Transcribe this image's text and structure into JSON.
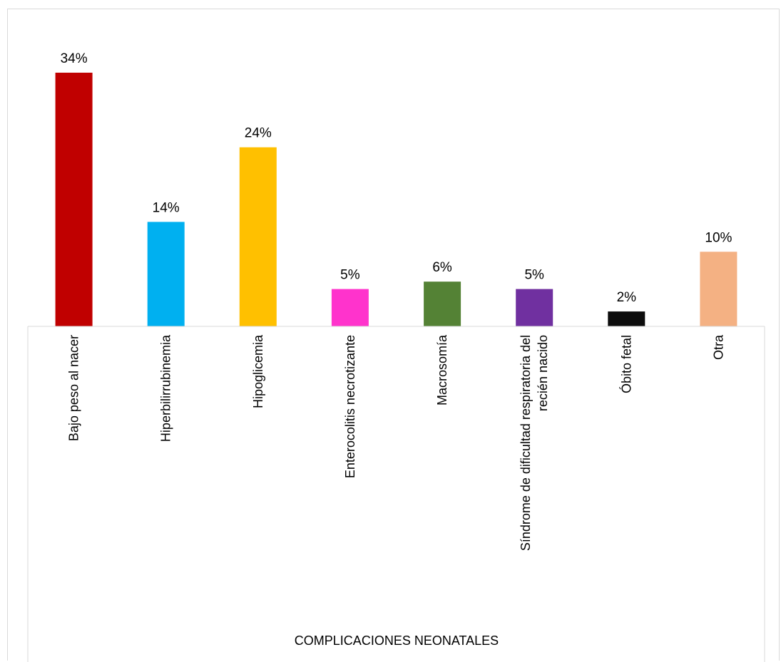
{
  "chart_data": {
    "type": "bar",
    "xlabel": "COMPLICACIONES NEONATALES",
    "ylabel": "",
    "ylim": [
      0,
      0.34
    ],
    "grid": false,
    "legend": "none",
    "categories": [
      [
        "Bajo peso al nacer"
      ],
      [
        "Hiperbilirrubinemia"
      ],
      [
        "Hipoglicemia"
      ],
      [
        "Enterocolitis necrotizante"
      ],
      [
        "Macrosomía"
      ],
      [
        "Síndrome de dificultad respiratoria del",
        "recién nacido"
      ],
      [
        "Óbito fetal"
      ],
      [
        "Otra"
      ]
    ],
    "values": [
      0.34,
      0.14,
      0.24,
      0.05,
      0.06,
      0.05,
      0.02,
      0.1
    ],
    "data_labels": [
      "34%",
      "14%",
      "24%",
      "5%",
      "6%",
      "5%",
      "2%",
      "10%"
    ],
    "colors": [
      "#C00000",
      "#00B0F0",
      "#FFC000",
      "#FF33CC",
      "#548235",
      "#7030A0",
      "#0D0D0D",
      "#F4B183"
    ]
  }
}
